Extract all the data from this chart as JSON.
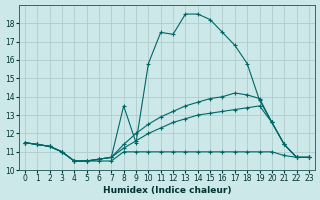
{
  "xlabel": "Humidex (Indice chaleur)",
  "background_color": "#cde8e8",
  "grid_color": "#b0cccc",
  "line_color": "#006666",
  "xlim": [
    -0.5,
    23.5
  ],
  "ylim": [
    10,
    19
  ],
  "xticks": [
    0,
    1,
    2,
    3,
    4,
    5,
    6,
    7,
    8,
    9,
    10,
    11,
    12,
    13,
    14,
    15,
    16,
    17,
    18,
    19,
    20,
    21,
    22,
    23
  ],
  "yticks": [
    10,
    11,
    12,
    13,
    14,
    15,
    16,
    17,
    18
  ],
  "series": [
    {
      "x": [
        0,
        1,
        2,
        3,
        4,
        5,
        6,
        7,
        8,
        9,
        10,
        11,
        12,
        13,
        14,
        15,
        16,
        17,
        18,
        19,
        20,
        21,
        22,
        23
      ],
      "y": [
        11.5,
        11.4,
        11.3,
        11.0,
        10.5,
        10.5,
        10.5,
        10.5,
        11.0,
        11.0,
        11.0,
        11.0,
        11.0,
        11.0,
        11.0,
        11.0,
        11.0,
        11.0,
        11.0,
        11.0,
        11.0,
        10.8,
        10.7,
        10.7
      ]
    },
    {
      "x": [
        0,
        1,
        2,
        3,
        4,
        5,
        6,
        7,
        8,
        9,
        10,
        11,
        12,
        13,
        14,
        15,
        16,
        17,
        18,
        19,
        20,
        21,
        22,
        23
      ],
      "y": [
        11.5,
        11.4,
        11.3,
        11.0,
        10.5,
        10.5,
        10.6,
        10.7,
        11.2,
        11.6,
        12.0,
        12.3,
        12.6,
        12.8,
        13.0,
        13.1,
        13.2,
        13.3,
        13.4,
        13.5,
        12.6,
        11.4,
        10.7,
        10.7
      ]
    },
    {
      "x": [
        0,
        1,
        2,
        3,
        4,
        5,
        6,
        7,
        8,
        9,
        10,
        11,
        12,
        13,
        14,
        15,
        16,
        17,
        18,
        19,
        20,
        21,
        22,
        23
      ],
      "y": [
        11.5,
        11.4,
        11.3,
        11.0,
        10.5,
        10.5,
        10.6,
        10.7,
        11.4,
        12.0,
        12.5,
        12.9,
        13.2,
        13.5,
        13.7,
        13.9,
        14.0,
        14.2,
        14.1,
        13.9,
        12.6,
        11.4,
        10.7,
        10.7
      ]
    },
    {
      "x": [
        0,
        1,
        2,
        3,
        4,
        5,
        6,
        7,
        8,
        9,
        10,
        11,
        12,
        13,
        14,
        15,
        16,
        17,
        18,
        19,
        20,
        21,
        22,
        23
      ],
      "y": [
        11.5,
        11.4,
        11.3,
        11.0,
        10.5,
        10.5,
        10.6,
        10.7,
        13.5,
        11.5,
        15.8,
        17.5,
        17.4,
        18.5,
        18.5,
        18.2,
        17.5,
        16.8,
        15.8,
        13.8,
        12.6,
        11.4,
        10.7,
        10.7
      ]
    }
  ]
}
